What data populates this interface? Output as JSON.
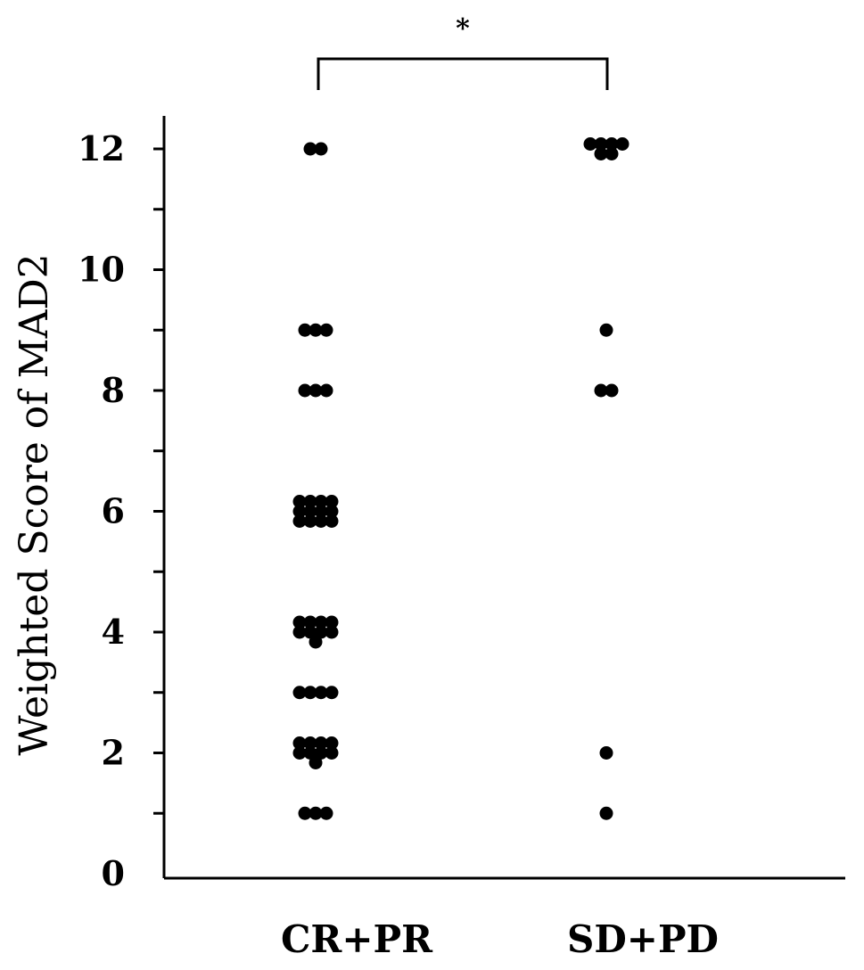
{
  "chart_data": {
    "type": "scatter",
    "ylabel": "Weighted Score of MAD2",
    "xlabel": "",
    "ylim": [
      0,
      12.5
    ],
    "y_ticks": [
      "0",
      "2",
      "4",
      "6",
      "8",
      "10",
      "12"
    ],
    "y_minor_ticks": [
      1,
      3,
      5,
      7,
      9,
      11
    ],
    "grid": false,
    "categories": [
      "CR+PR",
      "SD+PD"
    ],
    "groups": [
      {
        "category": "CR+PR",
        "points": [
          {
            "y": 12,
            "n": 2
          },
          {
            "y": 9,
            "n": 3
          },
          {
            "y": 8,
            "n": 3
          },
          {
            "y": 6,
            "n": 12
          },
          {
            "y": 4,
            "n": 9
          },
          {
            "y": 3,
            "n": 4
          },
          {
            "y": 2,
            "n": 9
          },
          {
            "y": 1,
            "n": 3
          }
        ]
      },
      {
        "category": "SD+PD",
        "points": [
          {
            "y": 12,
            "n": 6
          },
          {
            "y": 9,
            "n": 1
          },
          {
            "y": 8,
            "n": 2
          },
          {
            "y": 2,
            "n": 1
          },
          {
            "y": 1,
            "n": 1
          }
        ]
      }
    ],
    "annotation": "*"
  }
}
